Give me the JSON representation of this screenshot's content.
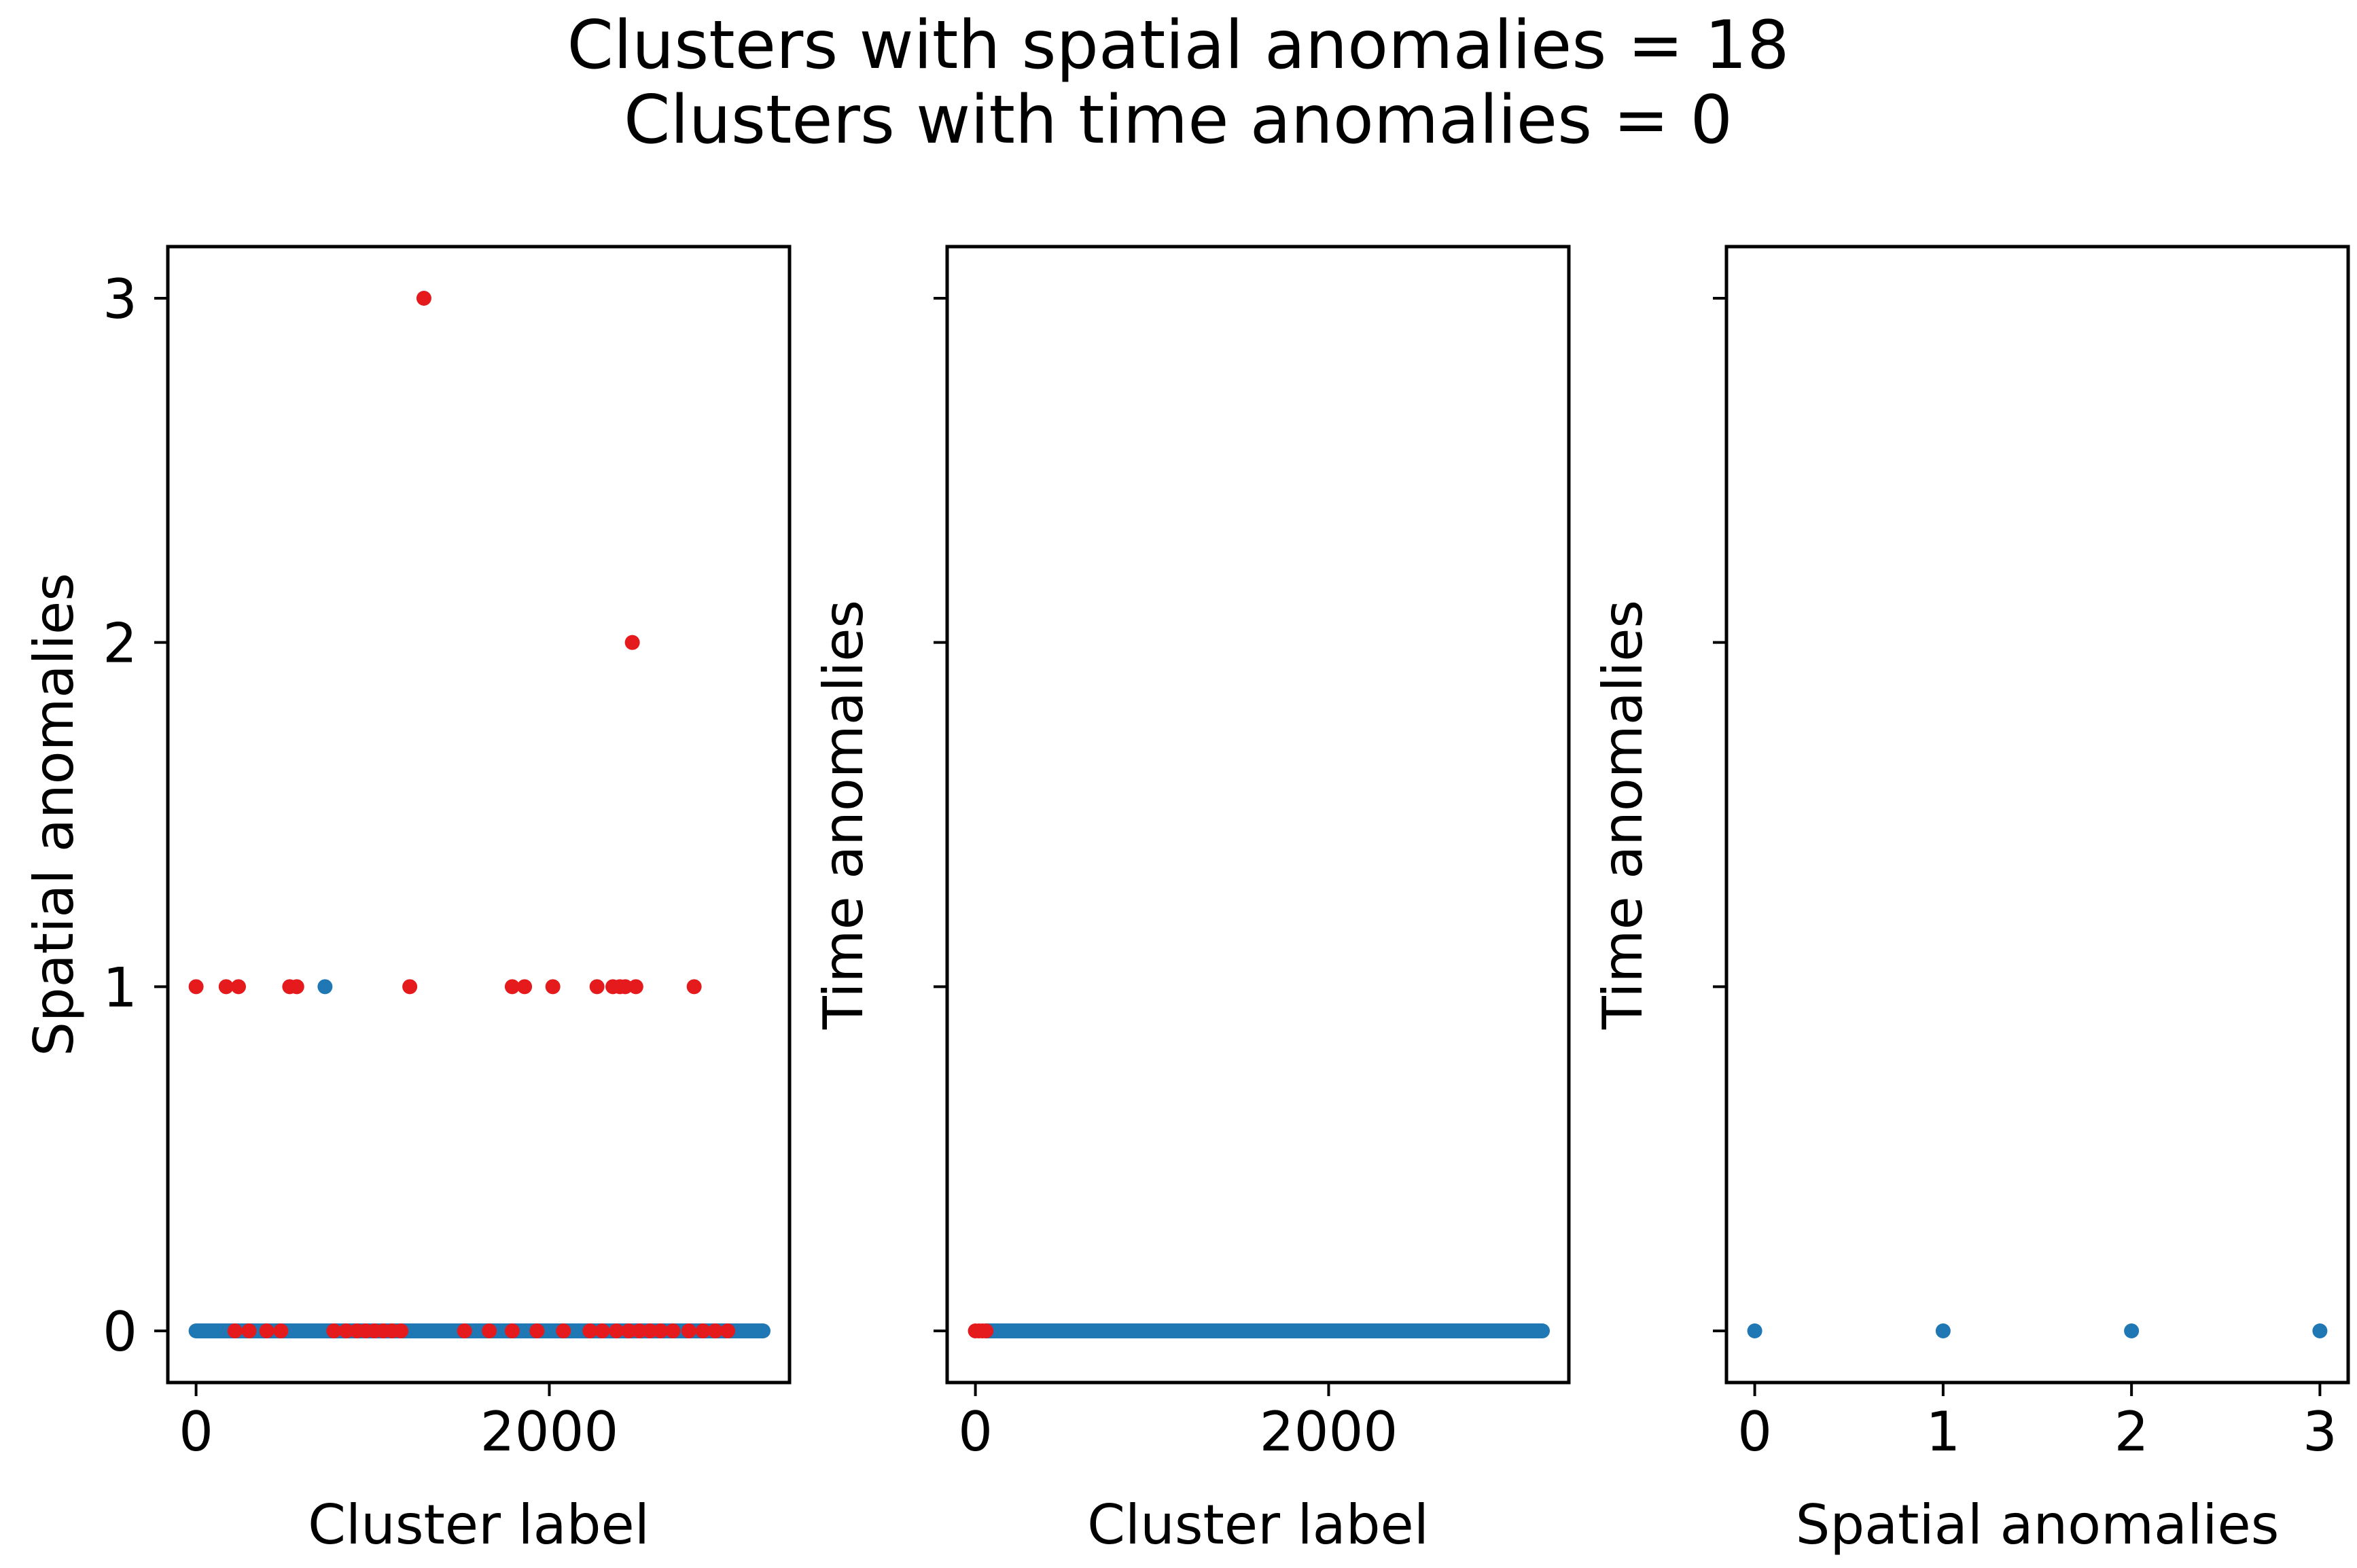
{
  "chart_data": {
    "suptitle": [
      "Clusters with spatial anomalies = 18",
      "Clusters with time anomalies = 0"
    ],
    "colors": {
      "normal": "#1f77b4",
      "anomaly": "#e41a1c",
      "axis": "#000000",
      "background": "#ffffff"
    },
    "panels": [
      {
        "type": "scatter",
        "xlabel": "Cluster label",
        "ylabel": "Spatial anomalies",
        "xlim": [
          -160,
          3360
        ],
        "ylim": [
          -0.15,
          3.15
        ],
        "xticks": [
          0,
          2000
        ],
        "yticks": [
          0,
          1,
          2,
          3
        ],
        "show_yticklabels": true,
        "series": [
          {
            "name": "normal",
            "color": "#1f77b4",
            "dense_line": {
              "x_from": 0,
              "x_to": 3210,
              "y": 0
            },
            "points": [
              [
                730,
                1
              ]
            ]
          },
          {
            "name": "anomalies",
            "color": "#e41a1c",
            "points": [
              [
                0,
                1
              ],
              [
                170,
                1
              ],
              [
                240,
                1
              ],
              [
                530,
                1
              ],
              [
                570,
                1
              ],
              [
                1210,
                1
              ],
              [
                1790,
                1
              ],
              [
                1860,
                1
              ],
              [
                2020,
                1
              ],
              [
                2270,
                1
              ],
              [
                2360,
                1
              ],
              [
                2400,
                1
              ],
              [
                2430,
                1
              ],
              [
                2490,
                1
              ],
              [
                2820,
                1
              ],
              [
                1290,
                3
              ],
              [
                2470,
                2
              ],
              [
                220,
                0
              ],
              [
                300,
                0
              ],
              [
                400,
                0
              ],
              [
                480,
                0
              ],
              [
                780,
                0
              ],
              [
                850,
                0
              ],
              [
                910,
                0
              ],
              [
                960,
                0
              ],
              [
                1010,
                0
              ],
              [
                1060,
                0
              ],
              [
                1110,
                0
              ],
              [
                1160,
                0
              ],
              [
                1520,
                0
              ],
              [
                1660,
                0
              ],
              [
                1790,
                0
              ],
              [
                1930,
                0
              ],
              [
                2080,
                0
              ],
              [
                2230,
                0
              ],
              [
                2300,
                0
              ],
              [
                2380,
                0
              ],
              [
                2450,
                0
              ],
              [
                2510,
                0
              ],
              [
                2570,
                0
              ],
              [
                2630,
                0
              ],
              [
                2700,
                0
              ],
              [
                2790,
                0
              ],
              [
                2870,
                0
              ],
              [
                2940,
                0
              ],
              [
                3010,
                0
              ]
            ]
          }
        ]
      },
      {
        "type": "scatter",
        "xlabel": "Cluster label",
        "ylabel": "Time anomalies",
        "xlim": [
          -160,
          3360
        ],
        "ylim": [
          -0.15,
          3.15
        ],
        "xticks": [
          0,
          2000
        ],
        "yticks": [
          0,
          1,
          2,
          3
        ],
        "show_yticklabels": false,
        "series": [
          {
            "name": "normal",
            "color": "#1f77b4",
            "dense_line": {
              "x_from": 60,
              "x_to": 3210,
              "y": 0
            },
            "points": []
          },
          {
            "name": "anomalies",
            "color": "#e41a1c",
            "points": [
              [
                0,
                0
              ],
              [
                20,
                0
              ],
              [
                40,
                0
              ],
              [
                60,
                0
              ]
            ]
          }
        ]
      },
      {
        "type": "scatter",
        "xlabel": "Spatial anomalies",
        "ylabel": "Time anomalies",
        "xlim": [
          -0.15,
          3.15
        ],
        "ylim": [
          -0.15,
          3.15
        ],
        "xticks": [
          0,
          1,
          2,
          3
        ],
        "yticks": [
          0,
          1,
          2,
          3
        ],
        "show_yticklabels": false,
        "series": [
          {
            "name": "normal",
            "color": "#1f77b4",
            "points": [
              [
                0,
                0
              ],
              [
                1,
                0
              ],
              [
                2,
                0
              ],
              [
                3,
                0
              ]
            ]
          }
        ]
      }
    ]
  }
}
